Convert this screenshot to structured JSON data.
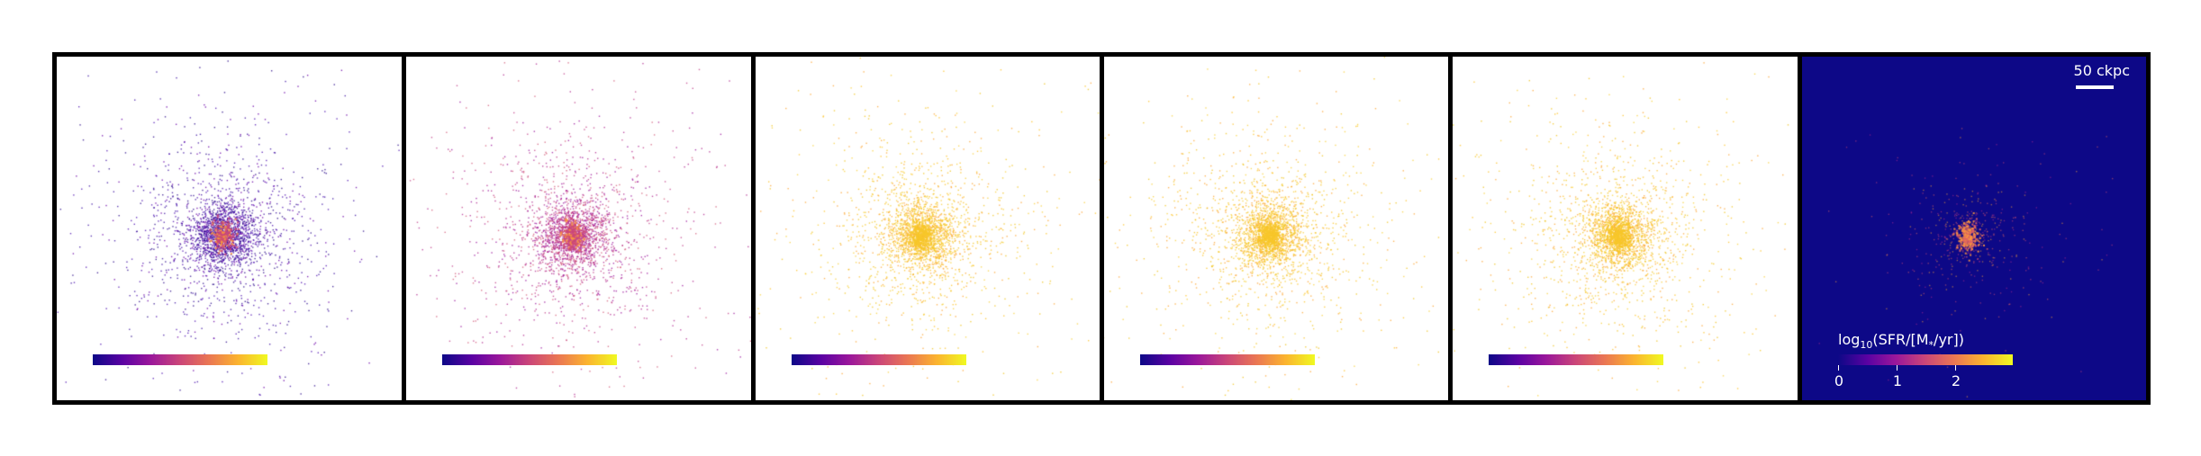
{
  "figure": {
    "panel_count": 6,
    "panel_backgrounds": [
      "#ffffff",
      "#ffffff",
      "#ffffff",
      "#ffffff",
      "#ffffff",
      "#0d0887"
    ],
    "scale_bar": {
      "label": "50 ckpc"
    },
    "colorbar": {
      "title_prefix": "log",
      "title_sub": "10",
      "title_suffix": "(SFR/[M",
      "title_sub2": "*",
      "title_end": "/yr])",
      "ticks": [
        "0",
        "1",
        "2"
      ],
      "colormap": "plasma"
    }
  }
}
